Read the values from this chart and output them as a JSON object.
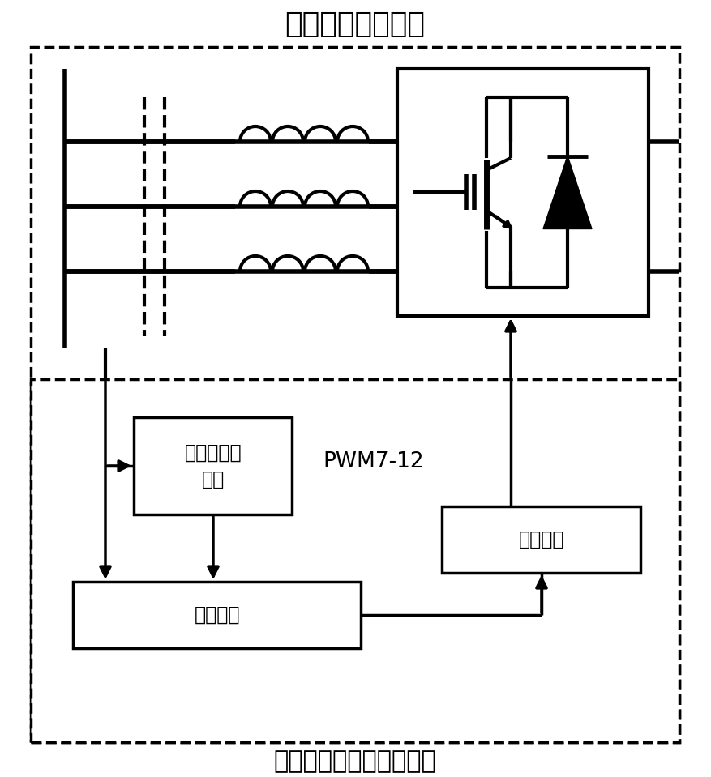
{
  "title_top": "起动发电机模拟器",
  "title_bottom": "起动发电机模拟器控制器",
  "label_motor_model": "起动发电机\n模型",
  "label_current_control": "电流控制",
  "label_pwm": "PWM7-12",
  "label_pulse_width": "脉宽调制",
  "bg_color": "#ffffff",
  "line_color": "#000000"
}
